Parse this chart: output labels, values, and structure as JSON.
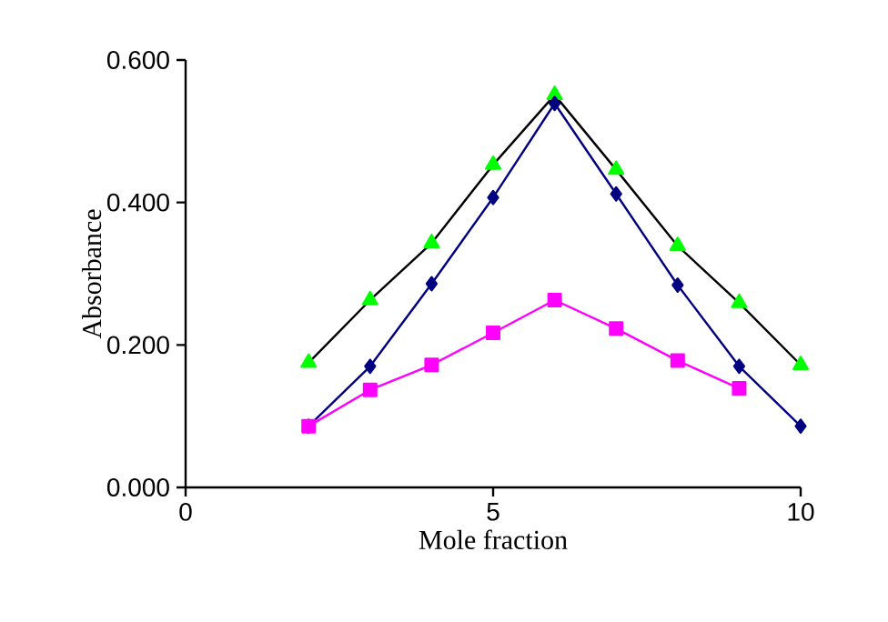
{
  "chart_data": {
    "type": "line",
    "xlabel": "Mole fraction",
    "ylabel": "Absorbance",
    "x": [
      2,
      3,
      4,
      5,
      6,
      7,
      8,
      9,
      10
    ],
    "series": [
      {
        "color": "#000000",
        "marker": "none",
        "values": [
          0.175,
          0.263,
          0.343,
          0.453,
          0.551,
          0.446,
          0.339,
          0.259,
          0.172
        ]
      },
      {
        "type": "scatter",
        "color": "#00ff00",
        "marker": "triangle",
        "values": [
          0.175,
          0.263,
          0.343,
          0.453,
          0.551,
          0.446,
          0.339,
          0.259,
          0.172
        ]
      },
      {
        "color": "#000080",
        "marker": "diamond",
        "values": [
          0.086,
          0.17,
          0.286,
          0.407,
          0.539,
          0.412,
          0.284,
          0.17,
          0.086
        ]
      },
      {
        "color": "#ff00ff",
        "marker": "square",
        "values": [
          0.086,
          0.137,
          0.172,
          0.217,
          0.263,
          0.223,
          0.178,
          0.139,
          null
        ]
      }
    ],
    "xlim": [
      0,
      10
    ],
    "xticks": [
      0,
      5,
      10
    ],
    "ylim": [
      0,
      0.6
    ],
    "yticks": [
      {
        "value": 0,
        "label": "0.000"
      },
      {
        "value": 0.2,
        "label": "0.200"
      },
      {
        "value": 0.4,
        "label": "0.400"
      },
      {
        "value": 0.6,
        "label": "0.600"
      }
    ],
    "grid": false,
    "legend": false,
    "line_style": "solid"
  }
}
